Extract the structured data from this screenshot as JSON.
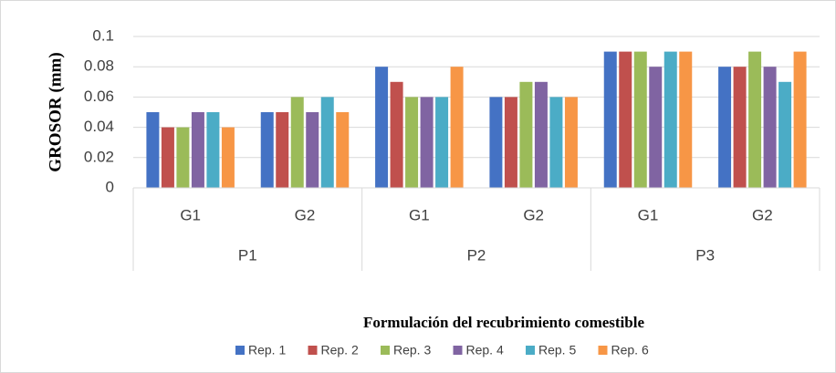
{
  "chart_data": {
    "type": "bar",
    "y_label": "GROSOR (mm)",
    "x_label": "Formulación del recubrimiento comestible",
    "groups": [
      "P1",
      "P2",
      "P3"
    ],
    "categories": [
      "G1",
      "G2",
      "G1",
      "G2",
      "G1",
      "G2"
    ],
    "series": [
      {
        "name": "Rep. 1",
        "color": "#4472c4",
        "values": [
          0.05,
          0.05,
          0.08,
          0.06,
          0.09,
          0.08
        ]
      },
      {
        "name": "Rep. 2",
        "color": "#c0504d",
        "values": [
          0.04,
          0.05,
          0.07,
          0.06,
          0.09,
          0.08
        ]
      },
      {
        "name": "Rep. 3",
        "color": "#9bbb59",
        "values": [
          0.04,
          0.06,
          0.06,
          0.07,
          0.09,
          0.09
        ]
      },
      {
        "name": "Rep. 4",
        "color": "#8064a2",
        "values": [
          0.05,
          0.05,
          0.06,
          0.07,
          0.08,
          0.08
        ]
      },
      {
        "name": "Rep. 5",
        "color": "#4bacc6",
        "values": [
          0.05,
          0.06,
          0.06,
          0.06,
          0.09,
          0.07
        ]
      },
      {
        "name": "Rep. 6",
        "color": "#f79646",
        "values": [
          0.04,
          0.05,
          0.08,
          0.06,
          0.09,
          0.09
        ]
      }
    ],
    "ylim": [
      0,
      0.1
    ],
    "yticks": [
      0,
      0.02,
      0.04,
      0.06,
      0.08,
      0.1
    ],
    "grid": true,
    "legend": "bottom"
  }
}
